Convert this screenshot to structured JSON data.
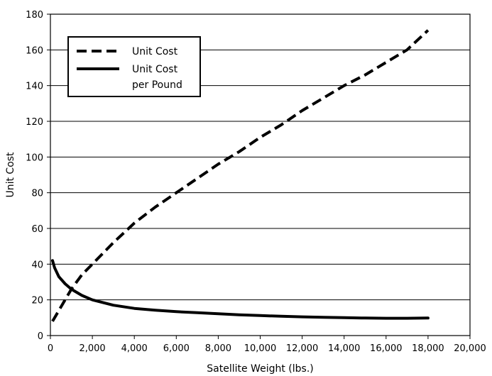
{
  "chart_data": {
    "type": "line",
    "xlabel": "Satellite Weight (lbs.)",
    "ylabel": "Unit Cost",
    "xlim": [
      0,
      20000
    ],
    "ylim": [
      0,
      180
    ],
    "grid": "horizontal",
    "legend_placement": "top-left",
    "x_ticks": [
      0,
      2000,
      4000,
      6000,
      8000,
      10000,
      12000,
      14000,
      16000,
      18000,
      20000
    ],
    "x_tick_labels": [
      "0",
      "2,000",
      "4,000",
      "6,000",
      "8,000",
      "10,000",
      "12,000",
      "14,000",
      "16,000",
      "18,000",
      "20,000"
    ],
    "y_ticks": [
      0,
      20,
      40,
      60,
      80,
      100,
      120,
      140,
      160,
      180
    ],
    "y_tick_labels": [
      "0",
      "20",
      "40",
      "60",
      "80",
      "100",
      "120",
      "140",
      "160",
      "180"
    ],
    "series": [
      {
        "name": "Unit Cost",
        "style": "dashed",
        "color": "#000000",
        "x": [
          100,
          500,
          1000,
          1500,
          2000,
          3000,
          4000,
          5000,
          6000,
          7000,
          8000,
          9000,
          10000,
          11000,
          12000,
          13000,
          14000,
          15000,
          16000,
          17000,
          18000
        ],
        "y": [
          8,
          16,
          26,
          34,
          40,
          52,
          63,
          72,
          80,
          88,
          96,
          103,
          111,
          118,
          126,
          133,
          140,
          146,
          153,
          160,
          171
        ]
      },
      {
        "name": "Unit Cost\nper Pound",
        "legend_lines": [
          "Unit Cost",
          "per Pound"
        ],
        "style": "solid",
        "color": "#000000",
        "x": [
          100,
          200,
          400,
          700,
          1000,
          1500,
          2000,
          3000,
          4000,
          5000,
          6000,
          7000,
          8000,
          9000,
          10000,
          11000,
          12000,
          13000,
          14000,
          15000,
          16000,
          17000,
          18000
        ],
        "y": [
          42,
          38,
          33,
          29,
          26,
          22.5,
          20,
          17,
          15.2,
          14.2,
          13.4,
          12.8,
          12.2,
          11.6,
          11.2,
          10.8,
          10.5,
          10.2,
          10.0,
          9.8,
          9.7,
          9.7,
          9.8
        ]
      }
    ]
  }
}
